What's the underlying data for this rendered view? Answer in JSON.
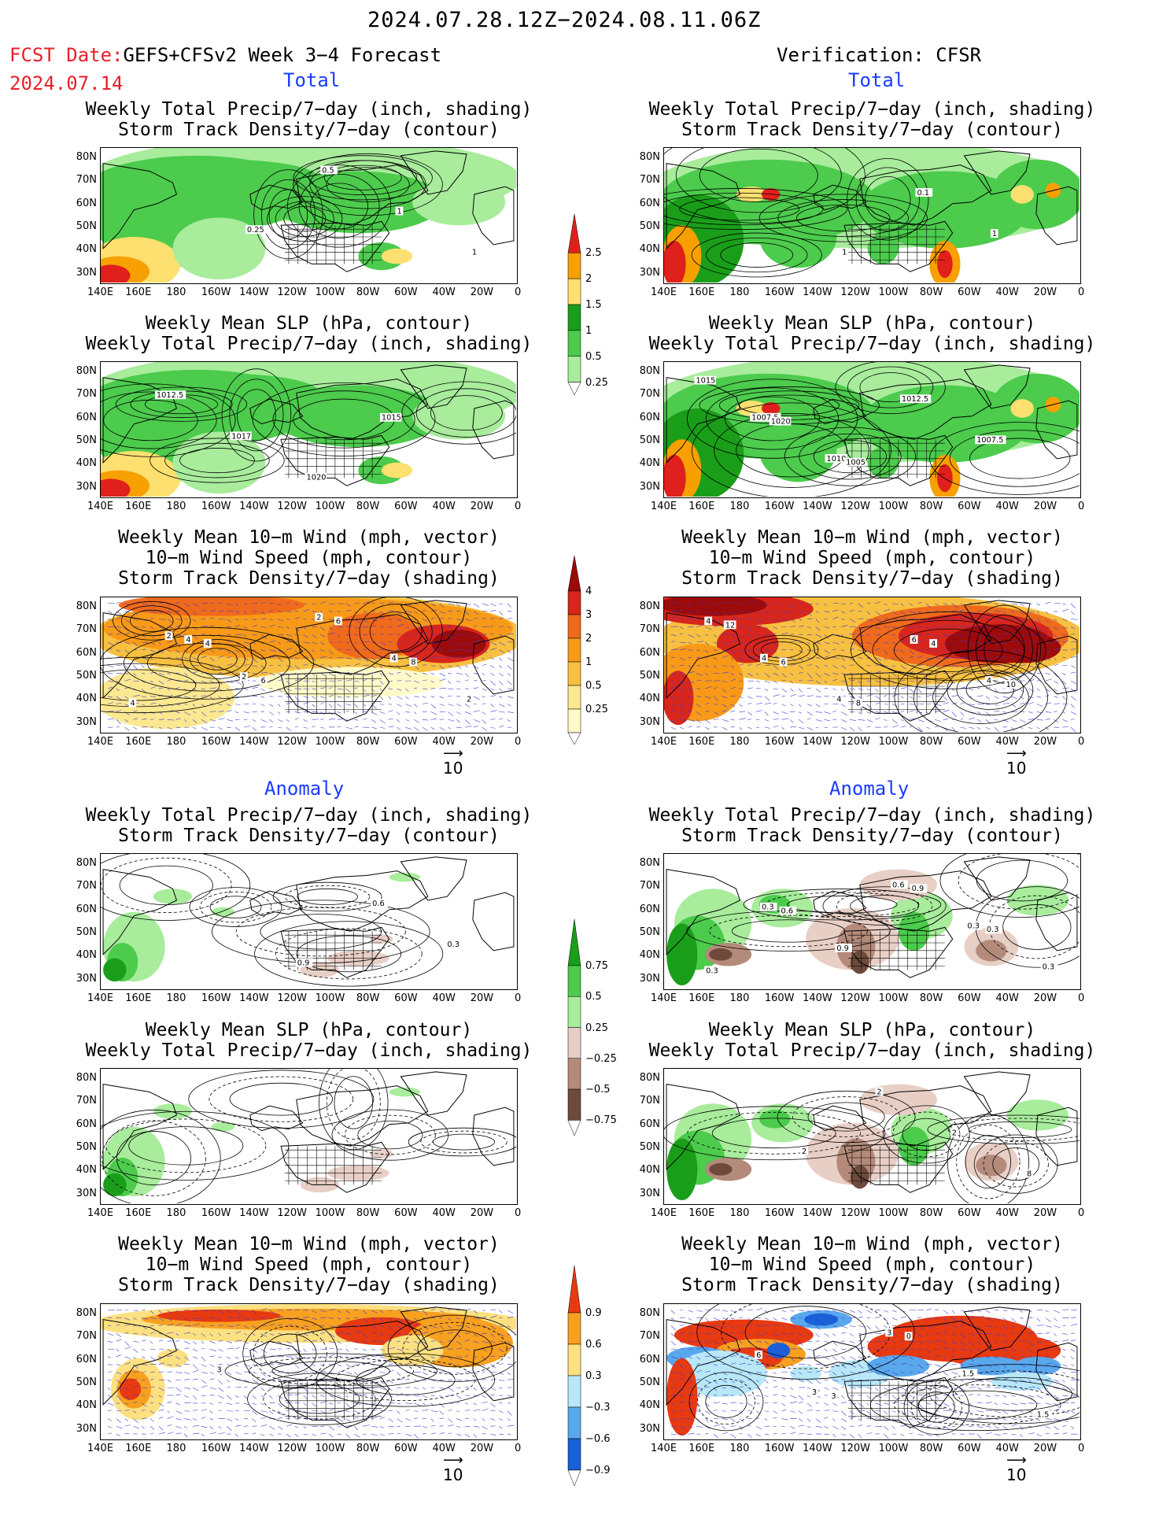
{
  "header": {
    "period": "2024.07.28.12Z−2024.08.11.06Z",
    "fcst_date_label": "FCST Date:",
    "fcst_date": "2024.07.14",
    "model": "GEFS+CFSv2 Week 3−4 Forecast",
    "verification": "Verification: CFSR"
  },
  "sections": {
    "total": "Total",
    "anomaly": "Anomaly"
  },
  "panel_titles": {
    "precip_storm": [
      "Weekly Total Precip/7−day (inch, shading)",
      "Storm Track Density/7−day (contour)"
    ],
    "slp_precip": [
      "Weekly Mean SLP (hPa, contour)",
      "Weekly Total Precip/7−day (inch, shading)"
    ],
    "wind": [
      "Weekly Mean 10−m Wind (mph, vector)",
      "10−m Wind Speed (mph, contour)",
      "Storm Track Density/7−day (shading)"
    ]
  },
  "axes": {
    "lat_labels": [
      "80N",
      "70N",
      "60N",
      "50N",
      "40N",
      "30N"
    ],
    "lon_labels": [
      "140E",
      "160E",
      "180",
      "160W",
      "140W",
      "120W",
      "100W",
      "80W",
      "60W",
      "40W",
      "20W",
      "0"
    ]
  },
  "vector_ref": "10",
  "colorbars": {
    "precip_total": {
      "labels": [
        "2.5",
        "2",
        "1.5",
        "1",
        "0.5",
        "0.25"
      ],
      "colors": [
        "#e0201c",
        "#f7a000",
        "#fde070",
        "#1a9e1a",
        "#4ccb4c",
        "#a8ec9c"
      ]
    },
    "storm_total": {
      "labels": [
        "4",
        "3",
        "2",
        "1",
        "0.5",
        "0.25"
      ],
      "colors": [
        "#9c0a0a",
        "#d8261c",
        "#f06a1c",
        "#f89a18",
        "#f8c040",
        "#fce890",
        "#fffac8"
      ]
    },
    "precip_anom": {
      "labels": [
        "0.75",
        "0.5",
        "0.25",
        "−0.25",
        "−0.5",
        "−0.75"
      ],
      "colors": [
        "#1a9e1a",
        "#4ccb4c",
        "#a8ec9c",
        "#e8cfc6",
        "#b48a7a",
        "#6e4a3c"
      ]
    },
    "storm_anom": {
      "labels": [
        "0.9",
        "0.6",
        "0.3",
        "−0.3",
        "−0.6",
        "−0.9"
      ],
      "colors": [
        "#e83a10",
        "#f8a020",
        "#fde080",
        "#b8e8f8",
        "#5aa8ec",
        "#1a60d8"
      ]
    }
  },
  "contour_labels": {
    "fc_precip_storm": [
      "0.25",
      "0.5",
      "1",
      "1"
    ],
    "ob_precip_storm": [
      "1",
      "0.1",
      "1"
    ],
    "fc_slp": [
      "1012.5",
      "1017",
      "1020",
      "1015"
    ],
    "ob_slp": [
      "1007.5",
      "1010",
      "1012.5",
      "1007.5",
      "1015",
      "1020",
      "1005"
    ],
    "fc_wind": [
      "2",
      "2",
      "2",
      "4",
      "2",
      "4",
      "6",
      "6",
      "8",
      "4",
      "4"
    ],
    "ob_wind": [
      "4",
      "4",
      "6",
      "4",
      "4",
      "6",
      "8",
      "4",
      "10",
      "12"
    ],
    "fc_anom_precip_storm": [
      "0.9",
      "0.6",
      "0.3"
    ],
    "ob_anom_precip_storm": [
      "0.6",
      "0.3",
      "0.3",
      "0.3",
      "0.9",
      "0.9",
      "0.3",
      "0.3",
      "0.6"
    ],
    "ob_anom_slp": [
      "2",
      "2",
      "2",
      "8"
    ],
    "fc_anom_wind": [
      "3"
    ],
    "ob_anom_wind": [
      "3",
      "3",
      "1.5",
      "1.5",
      "6",
      "3",
      "0"
    ]
  }
}
